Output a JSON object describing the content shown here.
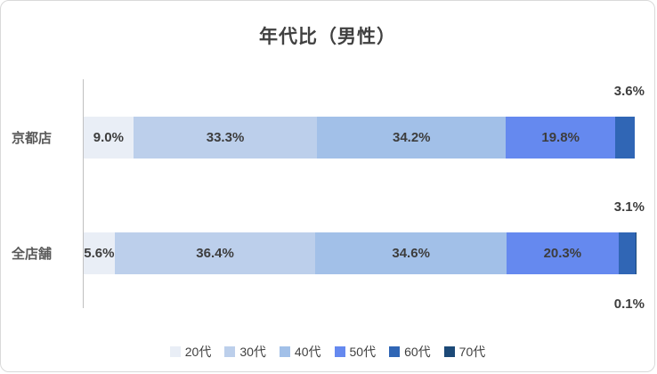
{
  "chart_data": {
    "type": "bar",
    "orientation": "horizontal",
    "stacked": true,
    "title": "年代比（男性）",
    "categories": [
      "京都店",
      "全店舗"
    ],
    "series": [
      {
        "name": "20代",
        "color": "#e9eef6",
        "values": [
          9.0,
          5.6
        ],
        "labels": [
          "9.0%",
          "5.6%"
        ],
        "label_position": "inside"
      },
      {
        "name": "30代",
        "color": "#bccfeb",
        "values": [
          33.3,
          36.4
        ],
        "labels": [
          "33.3%",
          "36.4%"
        ],
        "label_position": "inside"
      },
      {
        "name": "40代",
        "color": "#a2c0e8",
        "values": [
          34.2,
          34.6
        ],
        "labels": [
          "34.2%",
          "34.6%"
        ],
        "label_position": "inside"
      },
      {
        "name": "50代",
        "color": "#6589ef",
        "values": [
          19.8,
          20.3
        ],
        "labels": [
          "19.8%",
          "20.3%"
        ],
        "label_position": "inside"
      },
      {
        "name": "60代",
        "color": "#3066b5",
        "values": [
          3.6,
          3.1
        ],
        "labels": [
          "3.6%",
          "3.1%"
        ],
        "label_position": "above"
      },
      {
        "name": "70代",
        "color": "#1c4977",
        "values": [
          0.0,
          0.1
        ],
        "labels": [
          "",
          "0.1%"
        ],
        "label_position": "below"
      }
    ],
    "xlim": [
      0,
      100
    ],
    "legend_position": "bottom",
    "grid": false,
    "value_label_color": "#3d3d3d"
  }
}
